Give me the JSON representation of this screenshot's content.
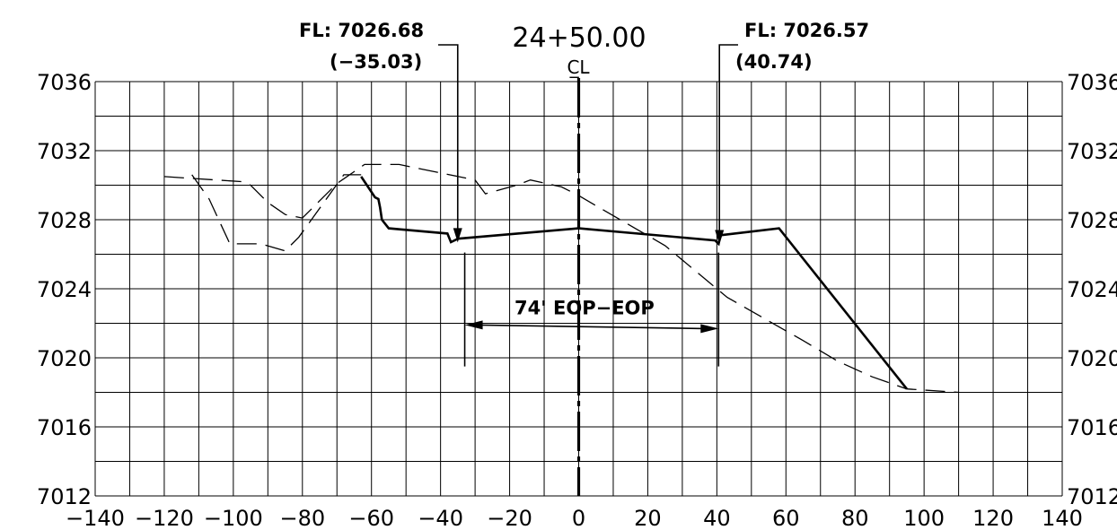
{
  "chart_data": {
    "type": "line",
    "title": "24+50.00",
    "centerline_symbol": "C̲L",
    "xlabel": "",
    "ylabel": "",
    "xlim": [
      -140,
      140
    ],
    "ylim": [
      7012,
      7036
    ],
    "grid": true,
    "x_ticks": [
      -140,
      -120,
      -100,
      -80,
      -60,
      -40,
      -20,
      0,
      20,
      40,
      60,
      80,
      100,
      120,
      140
    ],
    "x_tick_labels": [
      "−140",
      "−120",
      "−100",
      "−80",
      "−60",
      "−40",
      "−20",
      "0",
      "20",
      "40",
      "60",
      "80",
      "100",
      "120",
      "140"
    ],
    "y_ticks": [
      7012,
      7016,
      7020,
      7024,
      7028,
      7032,
      7036
    ],
    "y_tick_labels": [
      "7012",
      "7016",
      "7020",
      "7024",
      "7028",
      "7032",
      "7036"
    ],
    "series": [
      {
        "style": "solid",
        "x": [
          -63,
          -59,
          -58,
          -57.5,
          -57,
          -55,
          -38,
          -37,
          -35,
          0,
          39.5,
          40.5,
          41,
          58,
          95
        ],
        "y": [
          7030.5,
          7029.3,
          7029.2,
          7028.7,
          7028,
          7027.5,
          7027.2,
          7026.7,
          7026.9,
          7027.5,
          7026.8,
          7026.6,
          7027.1,
          7027.5,
          7018.2
        ]
      },
      {
        "style": "dashed",
        "x": [
          -120,
          -97,
          -95,
          -90,
          -85,
          -80,
          -70,
          -62,
          -52,
          -30,
          -27,
          -18,
          -14,
          -5,
          0,
          12,
          25,
          43,
          65,
          75,
          85,
          95,
          110
        ],
        "y": [
          7030.5,
          7030.2,
          7030,
          7029,
          7028.3,
          7028.1,
          7030.1,
          7031.2,
          7031.2,
          7030.3,
          7029.5,
          7030,
          7030.3,
          7029.9,
          7029.4,
          7028,
          7026.5,
          7023.5,
          7021,
          7019.8,
          7018.9,
          7018.2,
          7018
        ]
      },
      {
        "style": "dashed",
        "x": [
          -112,
          -107,
          -101,
          -92,
          -85,
          -81,
          -72,
          -68,
          -63
        ],
        "y": [
          7030.6,
          7029.2,
          7026.6,
          7026.6,
          7026.2,
          7027,
          7029.5,
          7030.6,
          7030.6
        ]
      }
    ],
    "annotations": [
      {
        "text_line1": "FL: 7026.68",
        "text_line2": "(−35.03)",
        "x": -35.03,
        "y": 7026.68
      },
      {
        "text_line1": "FL: 7026.57",
        "text_line2": "(40.74)",
        "x": 40.74,
        "y": 7026.57
      }
    ],
    "dimension": {
      "label": "74' EOP−EOP",
      "x1": -33,
      "x2": 40.5,
      "y": 7021.9
    }
  }
}
